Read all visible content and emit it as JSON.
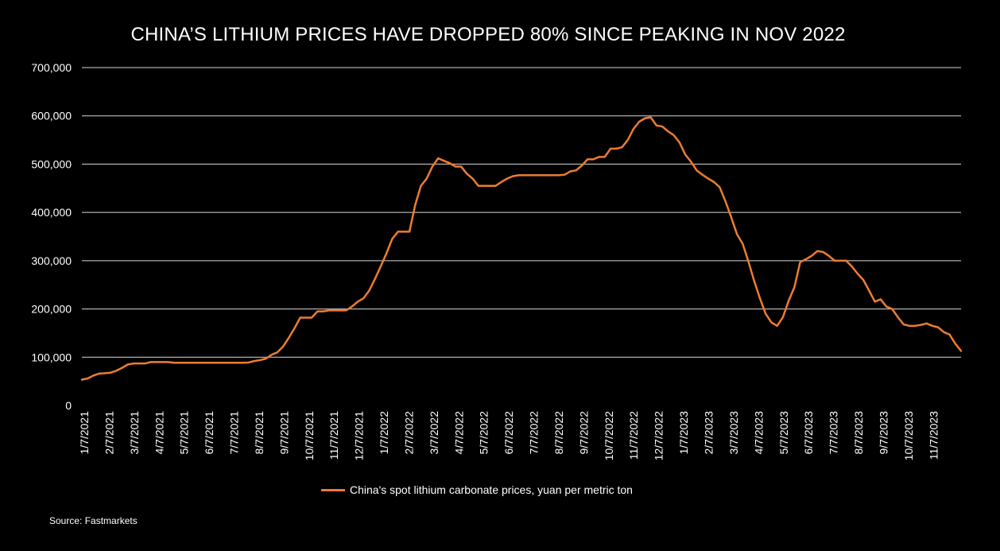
{
  "chart_data": {
    "type": "line",
    "title": "CHINA’S LITHIUM PRICES HAVE DROPPED 80% SINCE PEAKING IN NOV 2022",
    "source": "Source: Fastmarkets",
    "ylim": [
      0,
      700000
    ],
    "yticks": [
      "0",
      "100,000",
      "200,000",
      "300,000",
      "400,000",
      "500,000",
      "600,000",
      "700,000"
    ],
    "ytick_values": [
      0,
      100000,
      200000,
      300000,
      400000,
      500000,
      600000,
      700000
    ],
    "xticks": [
      "1/7/2021",
      "2/7/2021",
      "3/7/2021",
      "4/7/2021",
      "5/7/2021",
      "6/7/2021",
      "7/7/2021",
      "8/7/2021",
      "9/7/2021",
      "10/7/2021",
      "11/7/2021",
      "12/7/2021",
      "1/7/2022",
      "2/7/2022",
      "3/7/2022",
      "4/7/2022",
      "5/7/2022",
      "6/7/2022",
      "7/7/2022",
      "8/7/2022",
      "9/7/2022",
      "10/7/2022",
      "11/7/2022",
      "12/7/2022",
      "1/7/2023",
      "2/7/2023",
      "3/7/2023",
      "4/7/2023",
      "5/7/2023",
      "6/7/2023",
      "7/7/2023",
      "8/7/2023",
      "9/7/2023",
      "10/7/2023",
      "11/7/2023"
    ],
    "grid": true,
    "legend_position": "bottom",
    "color": "#ED7D31",
    "series": [
      {
        "name": "China's spot lithium carbonate prices, yuan per metric ton",
        "values": [
          53500,
          56000,
          62000,
          66000,
          67000,
          68000,
          72000,
          78000,
          85000,
          87000,
          87000,
          87000,
          90000,
          90000,
          90000,
          90000,
          88500,
          88500,
          88500,
          88500,
          88500,
          88500,
          88500,
          88500,
          88500,
          88500,
          88500,
          88500,
          88500,
          89000,
          92000,
          94000,
          97000,
          105000,
          110000,
          122000,
          140000,
          160000,
          182000,
          182000,
          182000,
          195000,
          195000,
          197000,
          197000,
          197000,
          197000,
          205000,
          215000,
          222000,
          238000,
          262000,
          288000,
          315000,
          345000,
          360000,
          360000,
          360000,
          415000,
          455000,
          470000,
          495000,
          512000,
          507000,
          502000,
          495000,
          495000,
          480000,
          470000,
          455000,
          455000,
          455000,
          455000,
          463000,
          470000,
          475000,
          477000,
          477000,
          477000,
          477000,
          477000,
          477000,
          477000,
          477000,
          478000,
          485000,
          487000,
          497000,
          510000,
          510000,
          515000,
          515000,
          532000,
          532000,
          535000,
          550000,
          573000,
          588000,
          595000,
          597000,
          580000,
          578000,
          568000,
          560000,
          545000,
          520000,
          505000,
          487000,
          478000,
          470000,
          463000,
          452000,
          423000,
          390000,
          355000,
          335000,
          298000,
          258000,
          222000,
          190000,
          172000,
          165000,
          183000,
          217000,
          245000,
          297000,
          303000,
          310000,
          320000,
          318000,
          310000,
          300000,
          300000,
          300000,
          288000,
          273000,
          260000,
          238000,
          215000,
          220000,
          205000,
          200000,
          183000,
          168000,
          165000,
          165000,
          167000,
          170000,
          165000,
          162000,
          152000,
          147000,
          128000,
          113000
        ]
      }
    ]
  }
}
